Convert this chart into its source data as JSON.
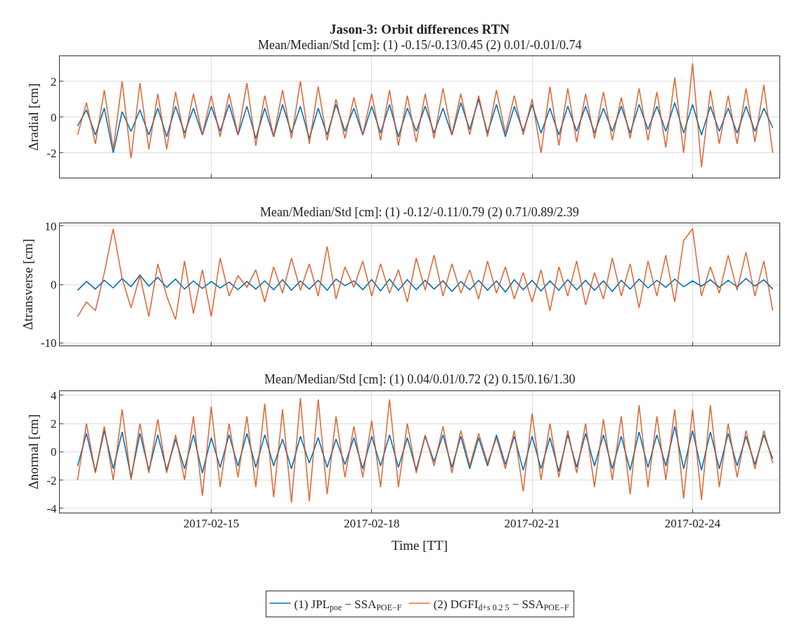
{
  "chart_data": [
    {
      "type": "line",
      "title": "Jason-3: Orbit differences RTN",
      "subtitle": "Mean/Median/Std [cm]: (1) -0.15/-0.13/0.45 (2) 0.01/-0.01/0.74",
      "ylabel": "Δradial [cm]",
      "grid": true,
      "tick_labels": "y",
      "xlim": [
        "2017-02-12T04:00",
        "2017-02-25T15:00"
      ],
      "xticks": [
        "2017-02-15",
        "2017-02-18",
        "2017-02-21",
        "2017-02-24"
      ],
      "ylim": [
        -3.4,
        3.4
      ],
      "yticks": [
        -2,
        0,
        2
      ],
      "x": [
        "2017-02-12T12:00",
        "2017-02-12T16:00",
        "2017-02-12T20:00",
        "2017-02-13T00:00",
        "2017-02-13T04:00",
        "2017-02-13T08:00",
        "2017-02-13T12:00",
        "2017-02-13T16:00",
        "2017-02-13T20:00",
        "2017-02-14T00:00",
        "2017-02-14T04:00",
        "2017-02-14T08:00",
        "2017-02-14T12:00",
        "2017-02-14T16:00",
        "2017-02-14T20:00",
        "2017-02-15T00:00",
        "2017-02-15T04:00",
        "2017-02-15T08:00",
        "2017-02-15T12:00",
        "2017-02-15T16:00",
        "2017-02-15T20:00",
        "2017-02-16T00:00",
        "2017-02-16T04:00",
        "2017-02-16T08:00",
        "2017-02-16T12:00",
        "2017-02-16T16:00",
        "2017-02-16T20:00",
        "2017-02-17T00:00",
        "2017-02-17T04:00",
        "2017-02-17T08:00",
        "2017-02-17T12:00",
        "2017-02-17T16:00",
        "2017-02-17T20:00",
        "2017-02-18T00:00",
        "2017-02-18T04:00",
        "2017-02-18T08:00",
        "2017-02-18T12:00",
        "2017-02-18T16:00",
        "2017-02-18T20:00",
        "2017-02-19T00:00",
        "2017-02-19T04:00",
        "2017-02-19T08:00",
        "2017-02-19T12:00",
        "2017-02-19T16:00",
        "2017-02-19T20:00",
        "2017-02-20T00:00",
        "2017-02-20T04:00",
        "2017-02-20T08:00",
        "2017-02-20T12:00",
        "2017-02-20T16:00",
        "2017-02-20T20:00",
        "2017-02-21T00:00",
        "2017-02-21T04:00",
        "2017-02-21T08:00",
        "2017-02-21T12:00",
        "2017-02-21T16:00",
        "2017-02-21T20:00",
        "2017-02-22T00:00",
        "2017-02-22T04:00",
        "2017-02-22T08:00",
        "2017-02-22T12:00",
        "2017-02-22T16:00",
        "2017-02-22T20:00",
        "2017-02-23T00:00",
        "2017-02-23T04:00",
        "2017-02-23T08:00",
        "2017-02-23T12:00",
        "2017-02-23T16:00",
        "2017-02-23T20:00",
        "2017-02-24T00:00",
        "2017-02-24T04:00",
        "2017-02-24T08:00",
        "2017-02-24T12:00",
        "2017-02-24T16:00",
        "2017-02-24T20:00",
        "2017-02-25T00:00",
        "2017-02-25T04:00",
        "2017-02-25T08:00",
        "2017-02-25T12:00"
      ],
      "series": [
        {
          "color": "#0072bd",
          "values": [
            -0.5,
            0.4,
            -1.0,
            0.5,
            -2.0,
            0.3,
            -0.8,
            0.4,
            -1.0,
            0.5,
            -1.1,
            0.6,
            -0.9,
            0.5,
            -1.0,
            0.6,
            -0.8,
            0.7,
            -1.0,
            0.6,
            -1.2,
            0.5,
            -1.1,
            0.7,
            -0.9,
            0.6,
            -1.2,
            0.5,
            -1.0,
            0.7,
            -0.8,
            0.5,
            -1.0,
            0.6,
            -0.9,
            0.7,
            -1.1,
            0.5,
            -0.8,
            0.6,
            -0.9,
            0.5,
            -1.0,
            0.8,
            -0.7,
            1.0,
            -0.9,
            0.7,
            -1.1,
            0.6,
            -0.8,
            0.7,
            -0.9,
            0.5,
            -1.0,
            0.6,
            -0.8,
            0.6,
            -0.9,
            0.5,
            -0.8,
            0.6,
            -0.9,
            0.7,
            -0.7,
            0.6,
            -0.8,
            0.8,
            -0.9,
            0.7,
            -1.0,
            0.6,
            -0.8,
            0.5,
            -0.9,
            0.6,
            -0.8,
            0.5,
            -0.6
          ]
        },
        {
          "color": "#d95319",
          "values": [
            -1.0,
            0.8,
            -1.5,
            1.5,
            -1.8,
            2.0,
            -2.3,
            1.9,
            -1.8,
            1.3,
            -1.8,
            1.4,
            -1.2,
            1.3,
            -1.0,
            1.2,
            -1.1,
            1.3,
            -1.0,
            1.9,
            -1.6,
            1.2,
            -1.1,
            1.5,
            -1.2,
            2.0,
            -1.5,
            1.7,
            -1.3,
            1.0,
            -1.2,
            1.1,
            -1.0,
            1.3,
            -1.3,
            1.5,
            -1.6,
            1.2,
            -1.4,
            1.3,
            -1.2,
            1.6,
            -1.0,
            1.3,
            -1.0,
            1.2,
            -1.1,
            1.5,
            -0.9,
            1.2,
            -1.0,
            1.0,
            -2.0,
            1.7,
            -1.6,
            1.6,
            -1.4,
            1.3,
            -1.2,
            1.4,
            -1.3,
            1.1,
            -1.2,
            1.6,
            -1.3,
            1.4,
            -1.7,
            2.2,
            -2.0,
            3.0,
            -2.8,
            1.5,
            -1.5,
            1.2,
            -1.5,
            1.6,
            -1.4,
            1.8,
            -2.0
          ]
        }
      ]
    },
    {
      "type": "line",
      "subtitle": "Mean/Median/Std [cm]: (1) -0.12/-0.11/0.79 (2) 0.71/0.89/2.39",
      "ylabel": "Δtransverse [cm]",
      "grid": true,
      "tick_labels": "y",
      "xlim": [
        "2017-02-12T04:00",
        "2017-02-25T15:00"
      ],
      "xticks": [
        "2017-02-15",
        "2017-02-18",
        "2017-02-21",
        "2017-02-24"
      ],
      "ylim": [
        -10.4,
        10.4
      ],
      "yticks": [
        -10,
        0,
        10
      ],
      "x": [
        "2017-02-12T12:00",
        "2017-02-12T16:00",
        "2017-02-12T20:00",
        "2017-02-13T00:00",
        "2017-02-13T04:00",
        "2017-02-13T08:00",
        "2017-02-13T12:00",
        "2017-02-13T16:00",
        "2017-02-13T20:00",
        "2017-02-14T00:00",
        "2017-02-14T04:00",
        "2017-02-14T08:00",
        "2017-02-14T12:00",
        "2017-02-14T16:00",
        "2017-02-14T20:00",
        "2017-02-15T00:00",
        "2017-02-15T04:00",
        "2017-02-15T08:00",
        "2017-02-15T12:00",
        "2017-02-15T16:00",
        "2017-02-15T20:00",
        "2017-02-16T00:00",
        "2017-02-16T04:00",
        "2017-02-16T08:00",
        "2017-02-16T12:00",
        "2017-02-16T16:00",
        "2017-02-16T20:00",
        "2017-02-17T00:00",
        "2017-02-17T04:00",
        "2017-02-17T08:00",
        "2017-02-17T12:00",
        "2017-02-17T16:00",
        "2017-02-17T20:00",
        "2017-02-18T00:00",
        "2017-02-18T04:00",
        "2017-02-18T08:00",
        "2017-02-18T12:00",
        "2017-02-18T16:00",
        "2017-02-18T20:00",
        "2017-02-19T00:00",
        "2017-02-19T04:00",
        "2017-02-19T08:00",
        "2017-02-19T12:00",
        "2017-02-19T16:00",
        "2017-02-19T20:00",
        "2017-02-20T00:00",
        "2017-02-20T04:00",
        "2017-02-20T08:00",
        "2017-02-20T12:00",
        "2017-02-20T16:00",
        "2017-02-20T20:00",
        "2017-02-21T00:00",
        "2017-02-21T04:00",
        "2017-02-21T08:00",
        "2017-02-21T12:00",
        "2017-02-21T16:00",
        "2017-02-21T20:00",
        "2017-02-22T00:00",
        "2017-02-22T04:00",
        "2017-02-22T08:00",
        "2017-02-22T12:00",
        "2017-02-22T16:00",
        "2017-02-22T20:00",
        "2017-02-23T00:00",
        "2017-02-23T04:00",
        "2017-02-23T08:00",
        "2017-02-23T12:00",
        "2017-02-23T16:00",
        "2017-02-23T20:00",
        "2017-02-24T00:00",
        "2017-02-24T04:00",
        "2017-02-24T08:00",
        "2017-02-24T12:00",
        "2017-02-24T16:00",
        "2017-02-24T20:00",
        "2017-02-25T00:00",
        "2017-02-25T04:00",
        "2017-02-25T08:00",
        "2017-02-25T12:00"
      ],
      "series": [
        {
          "color": "#0072bd",
          "values": [
            -1.0,
            0.5,
            -0.8,
            0.7,
            -0.6,
            1.0,
            -0.4,
            1.6,
            -0.3,
            1.2,
            -0.5,
            0.9,
            -0.8,
            0.6,
            -0.7,
            0.5,
            -0.6,
            0.4,
            -0.9,
            0.5,
            -0.8,
            0.6,
            -0.9,
            0.8,
            -1.0,
            0.6,
            -0.8,
            0.7,
            -1.0,
            0.9,
            -0.2,
            0.6,
            -0.9,
            0.8,
            -1.1,
            0.9,
            -1.0,
            0.8,
            -0.9,
            0.7,
            -0.8,
            0.6,
            -1.2,
            0.5,
            -0.9,
            0.7,
            -1.0,
            0.6,
            -1.3,
            0.8,
            -0.9,
            0.7,
            -1.1,
            0.6,
            -1.0,
            0.8,
            -0.9,
            0.7,
            -1.0,
            0.6,
            -1.2,
            0.7,
            -0.8,
            0.9,
            -0.6,
            0.7,
            -0.5,
            0.9,
            -0.4,
            0.6,
            -0.3,
            0.8,
            -0.5,
            0.7,
            -0.4,
            1.0,
            -0.3,
            0.8,
            -0.8
          ]
        },
        {
          "color": "#d95319",
          "values": [
            -5.5,
            -3.0,
            -4.5,
            2.0,
            9.5,
            1.0,
            -4.0,
            1.5,
            -5.5,
            3.5,
            -2.0,
            -6.0,
            4.0,
            -5.0,
            2.5,
            -5.5,
            4.5,
            -2.0,
            1.5,
            -0.5,
            2.5,
            -3.0,
            3.0,
            -1.5,
            4.5,
            -1.0,
            3.5,
            -2.0,
            6.5,
            -2.5,
            3.0,
            -0.5,
            4.0,
            -2.0,
            3.5,
            -1.5,
            2.5,
            -3.0,
            4.5,
            -1.0,
            5.0,
            -2.0,
            3.5,
            -1.5,
            2.5,
            -2.5,
            4.0,
            -1.5,
            3.0,
            -2.5,
            2.0,
            -3.0,
            2.5,
            -4.5,
            3.0,
            -2.0,
            4.0,
            -3.5,
            2.0,
            -2.5,
            4.5,
            -2.0,
            3.5,
            -4.0,
            4.0,
            -2.0,
            5.0,
            -3.0,
            7.5,
            9.5,
            -2.0,
            3.0,
            -1.5,
            5.0,
            -1.0,
            5.5,
            -2.0,
            4.0,
            -4.5
          ]
        }
      ]
    },
    {
      "type": "line",
      "subtitle": "Mean/Median/Std [cm]: (1) 0.04/0.01/0.72 (2) 0.15/0.16/1.30",
      "ylabel": "Δnormal [cm]",
      "xlabel": "Time [TT]",
      "grid": true,
      "legend": "bottom",
      "xlim": [
        "2017-02-12T04:00",
        "2017-02-25T15:00"
      ],
      "xticks": [
        "2017-02-15",
        "2017-02-18",
        "2017-02-21",
        "2017-02-24"
      ],
      "ylim": [
        -4.3,
        4.3
      ],
      "yticks": [
        -4,
        -2,
        0,
        2,
        4
      ],
      "x": [
        "2017-02-12T12:00",
        "2017-02-12T16:00",
        "2017-02-12T20:00",
        "2017-02-13T00:00",
        "2017-02-13T04:00",
        "2017-02-13T08:00",
        "2017-02-13T12:00",
        "2017-02-13T16:00",
        "2017-02-13T20:00",
        "2017-02-14T00:00",
        "2017-02-14T04:00",
        "2017-02-14T08:00",
        "2017-02-14T12:00",
        "2017-02-14T16:00",
        "2017-02-14T20:00",
        "2017-02-15T00:00",
        "2017-02-15T04:00",
        "2017-02-15T08:00",
        "2017-02-15T12:00",
        "2017-02-15T16:00",
        "2017-02-15T20:00",
        "2017-02-16T00:00",
        "2017-02-16T04:00",
        "2017-02-16T08:00",
        "2017-02-16T12:00",
        "2017-02-16T16:00",
        "2017-02-16T20:00",
        "2017-02-17T00:00",
        "2017-02-17T04:00",
        "2017-02-17T08:00",
        "2017-02-17T12:00",
        "2017-02-17T16:00",
        "2017-02-17T20:00",
        "2017-02-18T00:00",
        "2017-02-18T04:00",
        "2017-02-18T08:00",
        "2017-02-18T12:00",
        "2017-02-18T16:00",
        "2017-02-18T20:00",
        "2017-02-19T00:00",
        "2017-02-19T04:00",
        "2017-02-19T08:00",
        "2017-02-19T12:00",
        "2017-02-19T16:00",
        "2017-02-19T20:00",
        "2017-02-20T00:00",
        "2017-02-20T04:00",
        "2017-02-20T08:00",
        "2017-02-20T12:00",
        "2017-02-20T16:00",
        "2017-02-20T20:00",
        "2017-02-21T00:00",
        "2017-02-21T04:00",
        "2017-02-21T08:00",
        "2017-02-21T12:00",
        "2017-02-21T16:00",
        "2017-02-21T20:00",
        "2017-02-22T00:00",
        "2017-02-22T04:00",
        "2017-02-22T08:00",
        "2017-02-22T12:00",
        "2017-02-22T16:00",
        "2017-02-22T20:00",
        "2017-02-23T00:00",
        "2017-02-23T04:00",
        "2017-02-23T08:00",
        "2017-02-23T12:00",
        "2017-02-23T16:00",
        "2017-02-23T20:00",
        "2017-02-24T00:00",
        "2017-02-24T04:00",
        "2017-02-24T08:00",
        "2017-02-24T12:00",
        "2017-02-24T16:00",
        "2017-02-24T20:00",
        "2017-02-25T00:00",
        "2017-02-25T04:00",
        "2017-02-25T08:00",
        "2017-02-25T12:00"
      ],
      "series": [
        {
          "name": "(1) JPL$_{poe}$ − SSA$_{POE−F}$",
          "color": "#0072bd",
          "values": [
            -1.0,
            1.3,
            -1.4,
            1.5,
            -1.2,
            1.4,
            -1.8,
            1.3,
            -1.3,
            1.2,
            -1.3,
            0.9,
            -1.2,
            1.2,
            -1.5,
            1.0,
            -1.1,
            1.2,
            -1.0,
            1.3,
            -1.1,
            1.2,
            -1.0,
            0.9,
            -1.2,
            1.1,
            -0.8,
            1.0,
            -1.1,
            0.9,
            -0.9,
            1.0,
            -1.2,
            1.1,
            -1.0,
            1.2,
            -1.1,
            1.0,
            -1.3,
            1.1,
            -0.7,
            1.2,
            -1.1,
            1.1,
            -1.2,
            1.0,
            -1.0,
            1.2,
            -0.9,
            1.1,
            -1.3,
            1.1,
            -1.2,
            1.0,
            -1.4,
            1.2,
            -1.1,
            1.3,
            -1.0,
            1.2,
            -1.2,
            1.1,
            -1.3,
            1.4,
            -1.1,
            1.2,
            -1.0,
            1.8,
            -1.2,
            1.5,
            -1.3,
            1.4,
            -1.2,
            1.3,
            -1.0,
            1.1,
            -0.9,
            1.2,
            -0.5
          ]
        },
        {
          "name": "(2) DGFI$_{d+s 0.2 5}$ − SSA$_{POE−F}$",
          "color": "#d95319",
          "values": [
            -2.0,
            2.0,
            -1.5,
            1.8,
            -2.0,
            3.0,
            -2.0,
            2.0,
            -1.5,
            2.3,
            -1.5,
            1.2,
            -2.0,
            2.5,
            -3.1,
            3.2,
            -2.5,
            2.0,
            -1.8,
            2.5,
            -2.5,
            3.4,
            -3.2,
            3.0,
            -3.6,
            3.8,
            -3.5,
            3.7,
            -3.0,
            2.5,
            -1.8,
            1.8,
            -1.8,
            2.2,
            -2.5,
            3.7,
            -2.5,
            2.0,
            -1.5,
            1.2,
            -1.0,
            1.8,
            -1.5,
            1.5,
            -1.0,
            1.3,
            -0.8,
            1.0,
            -1.2,
            1.5,
            -2.8,
            2.7,
            -2.0,
            2.0,
            -1.8,
            1.5,
            -1.5,
            2.0,
            -2.5,
            2.3,
            -2.0,
            2.5,
            -3.0,
            3.3,
            -2.5,
            2.5,
            -2.0,
            3.0,
            -3.3,
            3.0,
            -3.4,
            3.3,
            -2.5,
            2.0,
            -1.8,
            1.5,
            -1.2,
            1.5,
            -0.8
          ]
        }
      ]
    }
  ]
}
